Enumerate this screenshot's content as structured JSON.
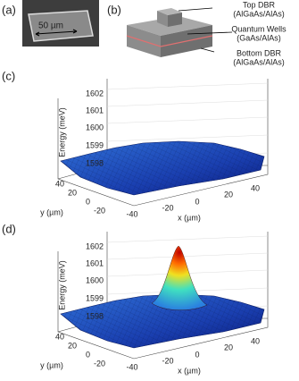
{
  "panel_a": {
    "label": "(a)",
    "scale_bar": "50 µm"
  },
  "panel_b": {
    "label": "(b)",
    "annotations": [
      {
        "name": "Top DBR",
        "material": "(AlGaAs/AlAs)"
      },
      {
        "name": "Quantum Wells",
        "material": "(GaAs/AlAs)"
      },
      {
        "name": "Bottom DBR",
        "material": "(AlGaAs/AlAs)"
      }
    ]
  },
  "panel_c": {
    "label": "(c)",
    "z_label": "Energy (meV)",
    "x_label": "x (µm)",
    "y_label": "y (µm)",
    "z_ticks": [
      1602,
      1601,
      1600,
      1599,
      1598
    ],
    "x_ticks": [
      -40,
      -20,
      0,
      20,
      40
    ],
    "y_ticks": [
      40,
      20,
      0,
      -20
    ]
  },
  "panel_d": {
    "label": "(d)",
    "z_label": "Energy (meV)",
    "x_label": "x (µm)",
    "y_label": "y (µm)",
    "z_ticks": [
      1602,
      1601,
      1600,
      1599,
      1598
    ],
    "x_ticks": [
      -40,
      -20,
      0,
      20,
      40
    ],
    "y_ticks": [
      40,
      20,
      0,
      -20
    ]
  }
}
